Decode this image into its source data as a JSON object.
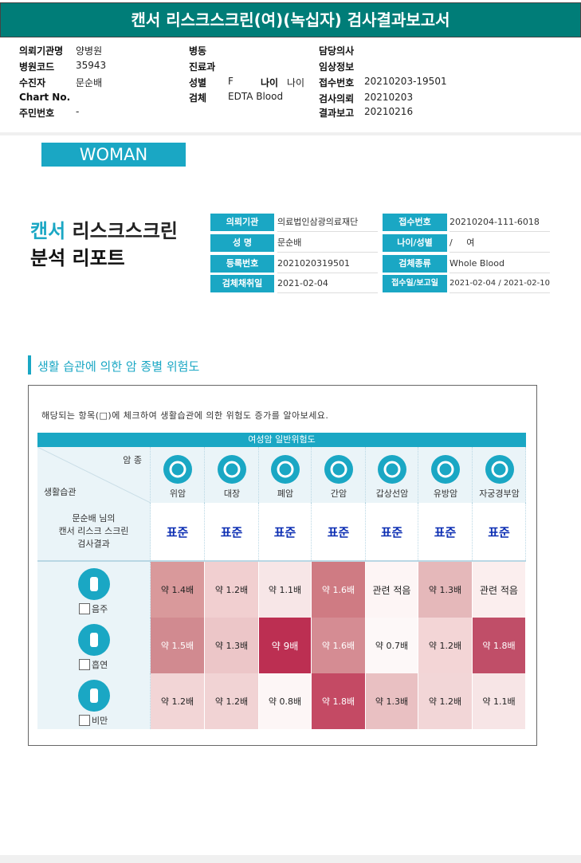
{
  "report_title": "캔서 리스크스크린(여)(녹십자) 검사결과보고서",
  "header": {
    "col1": [
      {
        "label": "의뢰기관명",
        "value": "양병원"
      },
      {
        "label": "병원코드",
        "value": "35943"
      },
      {
        "label": "수진자",
        "value": "문순배"
      },
      {
        "label": "Chart No.",
        "value": ""
      },
      {
        "label": "주민번호",
        "value": "-"
      }
    ],
    "col2": [
      {
        "label": "병동",
        "value": ""
      },
      {
        "label": "진료과",
        "value": ""
      },
      {
        "label": "성별",
        "value": "F"
      },
      {
        "label": "검체",
        "value": "EDTA Blood"
      }
    ],
    "age_label": "나이",
    "age_value": "나이",
    "col3": [
      {
        "label": "담당의사",
        "value": ""
      },
      {
        "label": "임상정보",
        "value": ""
      },
      {
        "label": "접수번호",
        "value": "20210203-19501"
      },
      {
        "label": "검사의뢰",
        "value": "20210203"
      },
      {
        "label": "결과보고",
        "value": "20210216"
      }
    ]
  },
  "woman_tag": "WOMAN",
  "report": {
    "title_accent": "캔서",
    "title_rest": " 리스크스크린",
    "title_line2": "분석 리포트",
    "info_left": [
      {
        "label": "의뢰기관",
        "value": "의료법인삼광의료재단"
      },
      {
        "label": "성 명",
        "value": "문순배"
      },
      {
        "label": "등록번호",
        "value": "2021020319501"
      },
      {
        "label": "검체채취일",
        "value": "2021-02-04"
      }
    ],
    "info_right": [
      {
        "label": "접수번호",
        "value": "20210204-111-6018"
      },
      {
        "label": "나이/성별",
        "value": "/     여"
      },
      {
        "label": "검체종류",
        "value": "Whole Blood"
      },
      {
        "label": "접수일/보고일",
        "value": "2021-02-04 / 2021-02-10"
      }
    ]
  },
  "section_title": "생활 습관에 의한 암 종별 위험도",
  "instruction": "해당되는 항목(□)에 체크하여 생활습관에 의한 위험도 증가를 알아보세요.",
  "table": {
    "header_title": "여성암 일반위험도",
    "corner_top": "암 종",
    "corner_bottom": "생활습관",
    "cancers": [
      {
        "name": "위암",
        "icon": "stomach-icon"
      },
      {
        "name": "대장",
        "icon": "colon-icon"
      },
      {
        "name": "폐암",
        "icon": "lung-icon"
      },
      {
        "name": "간암",
        "icon": "liver-icon"
      },
      {
        "name": "갑상선암",
        "icon": "thyroid-icon"
      },
      {
        "name": "유방암",
        "icon": "breast-icon"
      },
      {
        "name": "자궁경부암",
        "icon": "uterus-icon"
      }
    ],
    "result_row": {
      "label_lines": [
        "문순배 님의",
        "캔서 리스크 스크린",
        "검사결과"
      ],
      "values": [
        "표준",
        "표준",
        "표준",
        "표준",
        "표준",
        "표준",
        "표준"
      ]
    },
    "habits": [
      {
        "name": "음주",
        "icon": "alcohol-icon",
        "values": [
          "약 1.4배",
          "약 1.2배",
          "약 1.1배",
          "약 1.6배",
          "관련 적음",
          "약 1.3배",
          "관련 적음"
        ],
        "colors": [
          "#d9999b",
          "#f1cfd0",
          "#f7e6e7",
          "#cf7b83",
          "#fdf5f5",
          "#e5b8ba",
          "#fbeeee"
        ]
      },
      {
        "name": "흡연",
        "icon": "smoking-icon",
        "values": [
          "약 1.5배",
          "약 1.3배",
          "약 9배",
          "약 1.6배",
          "약 0.7배",
          "약 1.2배",
          "약 1.8배"
        ],
        "colors": [
          "#d18a90",
          "#ecc6c8",
          "#bc2f52",
          "#d58c93",
          "#fdf8f8",
          "#f3d5d6",
          "#c04e68"
        ]
      },
      {
        "name": "비만",
        "icon": "obesity-icon",
        "values": [
          "약 1.2배",
          "약 1.2배",
          "약 0.8배",
          "약 1.8배",
          "약 1.3배",
          "약 1.2배",
          "약 1.1배"
        ],
        "colors": [
          "#f2d5d6",
          "#f1d3d4",
          "#fdf6f6",
          "#c44a64",
          "#e9c0c2",
          "#f2d6d7",
          "#f7e5e6"
        ]
      }
    ]
  },
  "colors": {
    "title_bar": "#007d78",
    "accent": "#1aa7c4",
    "standard_text": "#0d2fb3"
  }
}
